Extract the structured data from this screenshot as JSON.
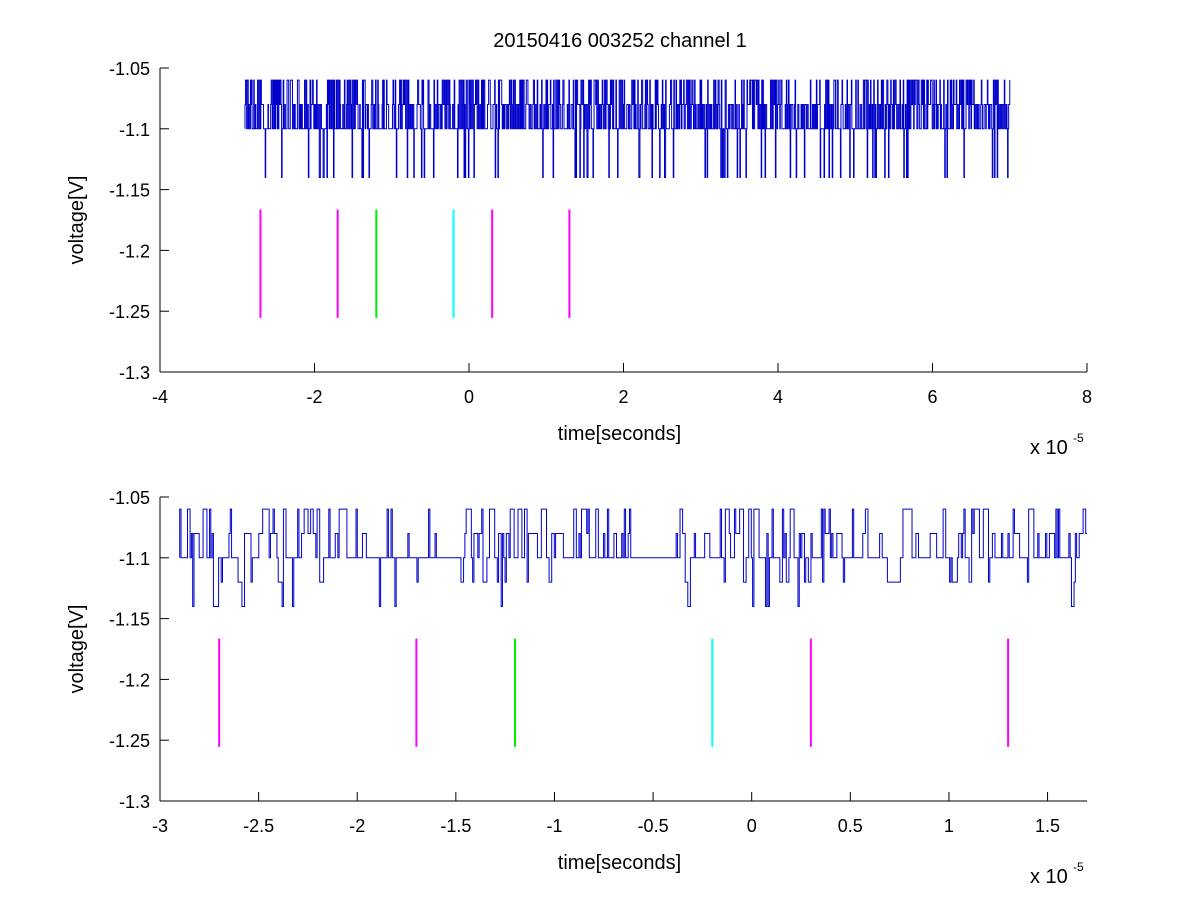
{
  "figure": {
    "title": "20150416 003252 channel 1",
    "background": "#ffffff"
  },
  "chart_data": [
    {
      "type": "line",
      "title": "20150416 003252 channel 1",
      "xlabel": "time[seconds]",
      "ylabel": "voltage[V]",
      "x_exponent_label": "x 10",
      "x_exponent": "-5",
      "x_scale": 1e-05,
      "xlim": [
        -4,
        8
      ],
      "ylim": [
        -1.3,
        -1.05
      ],
      "xticks": [
        -4,
        -2,
        0,
        2,
        4,
        6,
        8
      ],
      "xtick_labels": [
        "-4",
        "-2",
        "0",
        "2",
        "4",
        "6",
        "8"
      ],
      "yticks": [
        -1.05,
        -1.1,
        -1.15,
        -1.2,
        -1.25,
        -1.3
      ],
      "ytick_labels": [
        "-1.05",
        "-1.1",
        "-1.15",
        "-1.2",
        "-1.25",
        "-1.3"
      ],
      "grid": false,
      "series": [
        {
          "color": "#0000cc",
          "x_range": [
            -2.9,
            7.0
          ],
          "levels": [
            -1.14,
            -1.1,
            -1.08,
            -1.06
          ],
          "description": "quantized digitizer trace"
        }
      ],
      "markers": [
        {
          "x": -2.7,
          "y_range": [
            -1.2555,
            -1.1665
          ],
          "color": "#ff00ff"
        },
        {
          "x": -1.7,
          "y_range": [
            -1.2555,
            -1.1665
          ],
          "color": "#ff00ff"
        },
        {
          "x": -1.2,
          "y_range": [
            -1.2555,
            -1.1665
          ],
          "color": "#00ee00"
        },
        {
          "x": -0.2,
          "y_range": [
            -1.2555,
            -1.1665
          ],
          "color": "#00ffff"
        },
        {
          "x": 0.3,
          "y_range": [
            -1.2555,
            -1.1665
          ],
          "color": "#ff00ff"
        },
        {
          "x": 1.3,
          "y_range": [
            -1.2555,
            -1.1665
          ],
          "color": "#ff00ff"
        }
      ]
    },
    {
      "type": "line",
      "xlabel": "time[seconds]",
      "ylabel": "voltage[V]",
      "x_exponent_label": "x 10",
      "x_exponent": "-5",
      "x_scale": 1e-05,
      "xlim": [
        -3.0,
        1.7
      ],
      "ylim": [
        -1.3,
        -1.05
      ],
      "xticks": [
        -3,
        -2.5,
        -2,
        -1.5,
        -1,
        -0.5,
        0,
        0.5,
        1,
        1.5
      ],
      "xtick_labels": [
        "-3",
        "-2.5",
        "-2",
        "-1.5",
        "-1",
        "-0.5",
        "0",
        "0.5",
        "1",
        "1.5"
      ],
      "yticks": [
        -1.05,
        -1.1,
        -1.15,
        -1.2,
        -1.25,
        -1.3
      ],
      "ytick_labels": [
        "-1.05",
        "-1.1",
        "-1.15",
        "-1.2",
        "-1.25",
        "-1.3"
      ],
      "grid": false,
      "series": [
        {
          "color": "#0000cc",
          "x_range": [
            -2.9,
            1.7
          ],
          "levels": [
            -1.14,
            -1.12,
            -1.1,
            -1.08,
            -1.06
          ],
          "description": "zoomed quantized digitizer trace"
        }
      ],
      "markers": [
        {
          "x": -2.7,
          "y_range": [
            -1.2555,
            -1.1665
          ],
          "color": "#ff00ff"
        },
        {
          "x": -1.7,
          "y_range": [
            -1.2555,
            -1.1665
          ],
          "color": "#ff00ff"
        },
        {
          "x": -1.2,
          "y_range": [
            -1.2555,
            -1.1665
          ],
          "color": "#00ee00"
        },
        {
          "x": -0.2,
          "y_range": [
            -1.2555,
            -1.1665
          ],
          "color": "#00ffff"
        },
        {
          "x": 0.3,
          "y_range": [
            -1.2555,
            -1.1665
          ],
          "color": "#ff00ff"
        },
        {
          "x": 1.3,
          "y_range": [
            -1.2555,
            -1.1665
          ],
          "color": "#ff00ff"
        }
      ]
    }
  ]
}
